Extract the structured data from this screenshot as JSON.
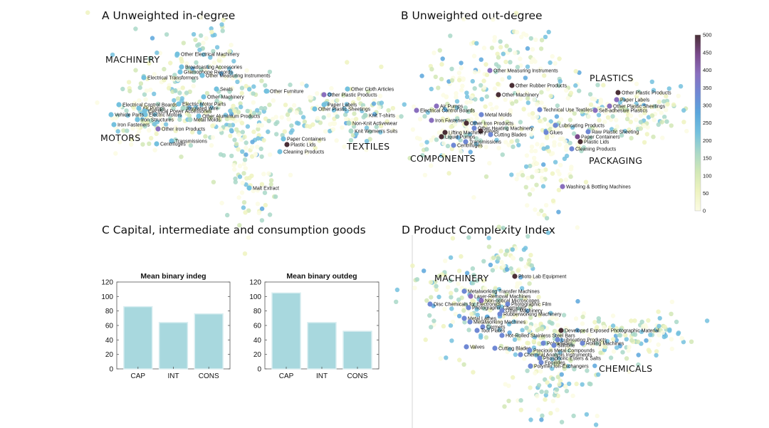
{
  "panels": [
    {
      "key": "A",
      "title": "A Unweighted in-degree"
    },
    {
      "key": "B",
      "title": "B Unweighted out-degree"
    },
    {
      "key": "C",
      "title": "C Capital, intermediate and consumption goods"
    },
    {
      "key": "D",
      "title": "D Product Complexity Index"
    }
  ],
  "colors": {
    "scale": [
      "#fbfbe3",
      "#eef3c0",
      "#d2e8b6",
      "#a9d8c8",
      "#74c1de",
      "#5aa6dc",
      "#6f88d4",
      "#8a6fbe",
      "#7a4a8c",
      "#4a2f36"
    ],
    "bar_fill": "#a8d8de",
    "bar_stroke": "#d9eef1"
  },
  "colorbar": {
    "ticks": [
      "500",
      "450",
      "400",
      "350",
      "300",
      "250",
      "200",
      "150",
      "100",
      "50",
      "0"
    ],
    "min": 0,
    "max": 500
  },
  "chart_data": [
    {
      "type": "bar",
      "title": "Mean binary indeg",
      "categories": [
        "CAP",
        "INT",
        "CONS"
      ],
      "values": [
        86,
        64,
        76
      ],
      "ylim": [
        0,
        120
      ],
      "yticks": [
        "0",
        "20",
        "40",
        "60",
        "80",
        "100",
        "120"
      ],
      "xlabel": "",
      "ylabel": ""
    },
    {
      "type": "bar",
      "title": "Mean binary outdeg",
      "categories": [
        "CAP",
        "INT",
        "CONS"
      ],
      "values": [
        105,
        64,
        52
      ],
      "ylim": [
        0,
        120
      ],
      "yticks": [
        "0",
        "20",
        "40",
        "60",
        "80",
        "100",
        "120"
      ],
      "xlabel": "",
      "ylabel": ""
    },
    {
      "type": "scatter",
      "title": "A Unweighted in-degree",
      "regions": [
        "MACHINERY",
        "MOTORS",
        "TEXTILES"
      ],
      "highlighted": [
        {
          "label": "Other Electrical Machinery",
          "value": 210
        },
        {
          "label": "Broadcasting Accessories",
          "value": 200
        },
        {
          "label": "Gramophone Records",
          "value": 200
        },
        {
          "label": "Other Measuring Instruments",
          "value": 200
        },
        {
          "label": "Electrical Transformers",
          "value": 220
        },
        {
          "label": "Seats",
          "value": 210
        },
        {
          "label": "Other Furniture",
          "value": 220
        },
        {
          "label": "Other Cloth Articles",
          "value": 220
        },
        {
          "label": "Other Plastic Products",
          "value": 350
        },
        {
          "label": "Other Machinery",
          "value": 210
        },
        {
          "label": "Electrical Control Boards",
          "value": 200
        },
        {
          "label": "Air Pumps",
          "value": 200
        },
        {
          "label": "Electric Motor Parts",
          "value": 200
        },
        {
          "label": "Insulated Wire",
          "value": 190
        },
        {
          "label": "Electrical Power Accessories",
          "value": 200
        },
        {
          "label": "Electric Motors",
          "value": 200
        },
        {
          "label": "Vehicle Parts",
          "value": 210
        },
        {
          "label": "Other Aluminium Products",
          "value": 200
        },
        {
          "label": "Iron Structures",
          "value": 200
        },
        {
          "label": "Metal Molds",
          "value": 190
        },
        {
          "label": "Iron Fasteners",
          "value": 200
        },
        {
          "label": "Other Iron Products",
          "value": 350
        },
        {
          "label": "Paper Labels",
          "value": 210
        },
        {
          "label": "Other Plastic Sheetings",
          "value": 210
        },
        {
          "label": "Knit T-shirts",
          "value": 190
        },
        {
          "label": "Non-Knit Activewear",
          "value": 190
        },
        {
          "label": "Knit Women's Suits",
          "value": 190
        },
        {
          "label": "Paper Containers",
          "value": 220
        },
        {
          "label": "Plastic Lids",
          "value": 450
        },
        {
          "label": "Cleaning Products",
          "value": 220
        },
        {
          "label": "Transmissions",
          "value": 210
        },
        {
          "label": "Centrifuges",
          "value": 210
        },
        {
          "label": "Malt Extract",
          "value": 210
        }
      ]
    },
    {
      "type": "scatter",
      "title": "B Unweighted out-degree",
      "regions": [
        "PLASTICS",
        "COMPONENTS",
        "PACKAGING"
      ],
      "highlighted": [
        {
          "label": "Other Measuring Instruments",
          "value": 390
        },
        {
          "label": "Other Rubber Products",
          "value": 480
        },
        {
          "label": "Other Machinery",
          "value": 480
        },
        {
          "label": "Other Plastic Products",
          "value": 490
        },
        {
          "label": "Paper Labels",
          "value": 390
        },
        {
          "label": "Other Plastic Sheetings",
          "value": 380
        },
        {
          "label": "Self-adhesive Plastics",
          "value": 350
        },
        {
          "label": "Technical Use Textiles",
          "value": 300
        },
        {
          "label": "Air Pumps",
          "value": 370
        },
        {
          "label": "Electrical Control Boards",
          "value": 370
        },
        {
          "label": "Metal Molds",
          "value": 330
        },
        {
          "label": "Iron Fasteners",
          "value": 390
        },
        {
          "label": "Other Iron Products",
          "value": 490
        },
        {
          "label": "Other Heating Machinery",
          "value": 330
        },
        {
          "label": "Valves",
          "value": 490
        },
        {
          "label": "Lifting Machinery",
          "value": 480
        },
        {
          "label": "Liquid Pumps",
          "value": 480
        },
        {
          "label": "Cutting Blades",
          "value": 300
        },
        {
          "label": "Transmissions",
          "value": 300
        },
        {
          "label": "Centrifuges",
          "value": 300
        },
        {
          "label": "Lubricating Products",
          "value": 320
        },
        {
          "label": "Glues",
          "value": 300
        },
        {
          "label": "Raw Plastic Sheeting",
          "value": 300
        },
        {
          "label": "Paper Containers",
          "value": 400
        },
        {
          "label": "Plastic Lids",
          "value": 490
        },
        {
          "label": "Cleaning Products",
          "value": 300
        },
        {
          "label": "Washing & Bottling Machines",
          "value": 390
        }
      ]
    },
    {
      "type": "scatter",
      "title": "D Product Complexity Index",
      "regions": [
        "MACHINERY",
        "CHEMICALS"
      ],
      "highlighted": [
        {
          "label": "Photo Lab Equipment",
          "value": 490
        },
        {
          "label": "Metalworking Transfer Machines",
          "value": 300
        },
        {
          "label": "Laser-Removal Machines",
          "value": 350
        },
        {
          "label": "Non-optical Microscopes",
          "value": 380
        },
        {
          "label": "Disc Chemicals for Electronics",
          "value": 330
        },
        {
          "label": "Photographic Film",
          "value": 330
        },
        {
          "label": "Photographic Chemicals",
          "value": 330
        },
        {
          "label": "Other Machinery",
          "value": 300
        },
        {
          "label": "Rubberworking Machinery",
          "value": 330
        },
        {
          "label": "Metal Lathes",
          "value": 300
        },
        {
          "label": "Metalworking Machines",
          "value": 300
        },
        {
          "label": "Cermets",
          "value": 300
        },
        {
          "label": "Tool Plates",
          "value": 300
        },
        {
          "label": "Hot-Rolled Stainless Steel Bars",
          "value": 300
        },
        {
          "label": "Developed Exposed Photographic Material",
          "value": 490
        },
        {
          "label": "Lubricating Products",
          "value": 300
        },
        {
          "label": "Polyamides",
          "value": 300
        },
        {
          "label": "Silicone",
          "value": 300
        },
        {
          "label": "Rolling Machines",
          "value": 300
        },
        {
          "label": "Valves",
          "value": 330
        },
        {
          "label": "Cutting Blades",
          "value": 300
        },
        {
          "label": "Precious Metal Compounds",
          "value": 300
        },
        {
          "label": "Chemical Analysis Instruments",
          "value": 330
        },
        {
          "label": "Phosphoric Esters & Salts",
          "value": 300
        },
        {
          "label": "Epoxides",
          "value": 300
        },
        {
          "label": "Polymer Ion-Exchangers",
          "value": 300
        }
      ]
    }
  ]
}
